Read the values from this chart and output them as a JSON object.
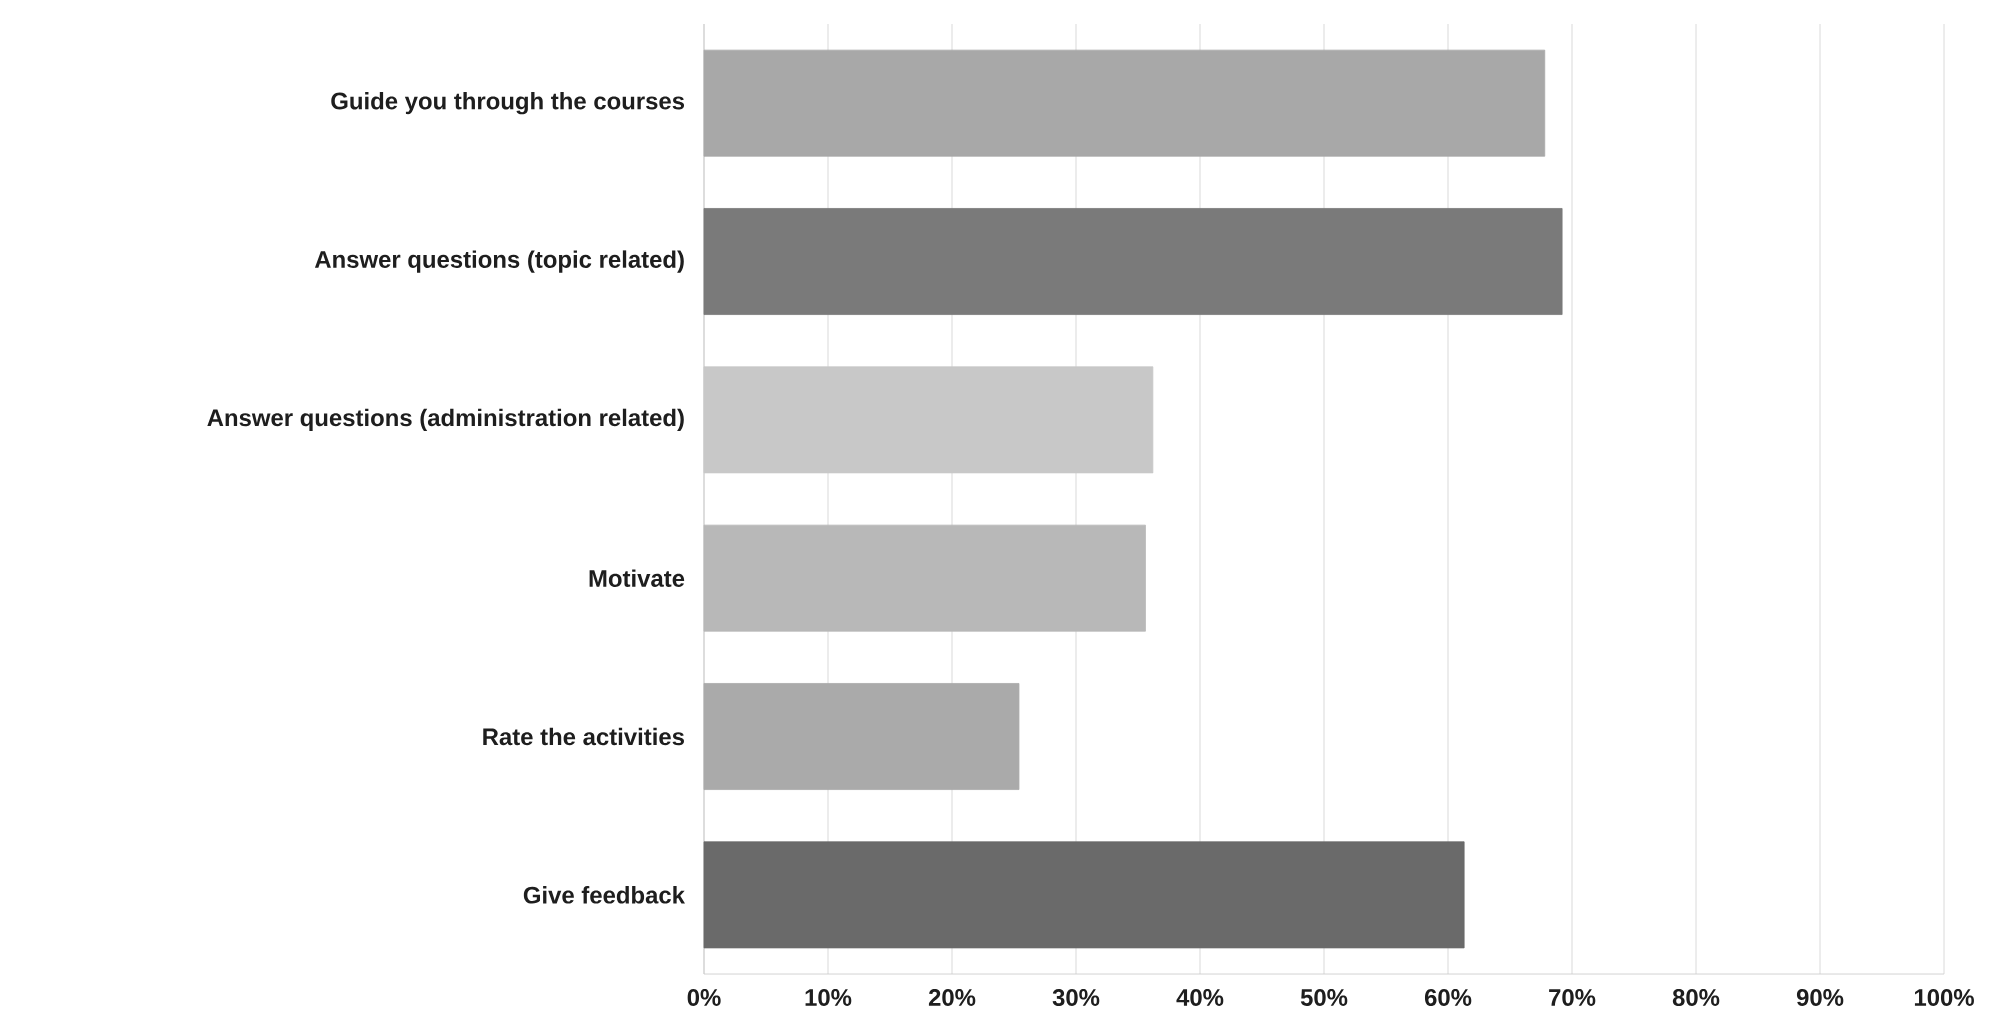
{
  "chart_data": {
    "type": "bar",
    "orientation": "horizontal",
    "categories": [
      "Guide you through the courses",
      "Answer questions (topic related)",
      "Answer questions (administration related)",
      "Motivate",
      "Rate the activities",
      "Give feedback"
    ],
    "values": [
      67.8,
      69.2,
      36.2,
      35.6,
      25.4,
      61.3
    ],
    "colors": [
      "#a8a8a8",
      "#7a7a7a",
      "#c8c8c8",
      "#b8b8b8",
      "#aaaaaa",
      "#6a6a6a"
    ],
    "xlim": [
      0,
      100
    ],
    "xticks": [
      {
        "value": 0,
        "label": "0%"
      },
      {
        "value": 10,
        "label": "10%"
      },
      {
        "value": 20,
        "label": "20%"
      },
      {
        "value": 30,
        "label": "30%"
      },
      {
        "value": 40,
        "label": "40%"
      },
      {
        "value": 50,
        "label": "50%"
      },
      {
        "value": 60,
        "label": "60%"
      },
      {
        "value": 70,
        "label": "70%"
      },
      {
        "value": 80,
        "label": "80%"
      },
      {
        "value": 90,
        "label": "90%"
      },
      {
        "value": 100,
        "label": "100%"
      }
    ],
    "grid": "x"
  }
}
